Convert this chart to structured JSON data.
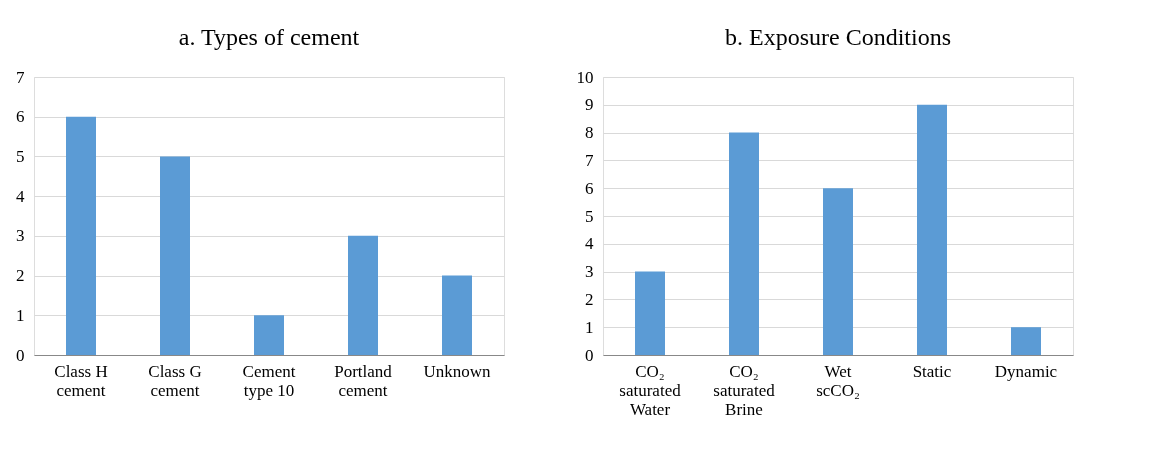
{
  "chart_data": [
    {
      "type": "bar",
      "title": "a. Types of cement",
      "categories": [
        "Class H\ncement",
        "Class G\ncement",
        "Cement\ntype 10",
        "Portland\ncement",
        "Unknown"
      ],
      "series": [
        {
          "color": "#5b9bd5",
          "values": [
            6,
            5,
            1,
            3,
            2
          ]
        }
      ],
      "ylim": [
        0,
        7
      ],
      "yticks": [
        0,
        1,
        2,
        3,
        4,
        5,
        6,
        7
      ],
      "grid": "y"
    },
    {
      "type": "bar",
      "title": "b. Exposure Conditions",
      "categories": [
        "CO₂\nsaturated\nWater",
        "CO₂\nsaturated\nBrine",
        "Wet\nscCO₂",
        "Static",
        "Dynamic"
      ],
      "series": [
        {
          "color": "#5b9bd5",
          "values": [
            3,
            8,
            6,
            9,
            1
          ]
        }
      ],
      "ylim": [
        0,
        10
      ],
      "yticks": [
        0,
        1,
        2,
        3,
        4,
        5,
        6,
        7,
        8,
        9,
        10
      ],
      "grid": "y"
    }
  ]
}
